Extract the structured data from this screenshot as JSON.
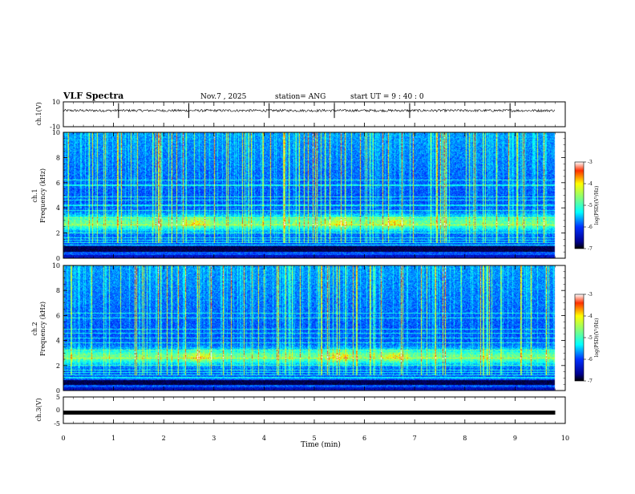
{
  "header": {
    "title": "VLF Spectra",
    "date": "Nov.7  , 2025",
    "station": "station= ANG",
    "start": "start  UT  =   9  : 40 : 0"
  },
  "colors": {
    "background": "#ffffff",
    "axis": "#000000"
  },
  "chart_data": [
    {
      "type": "line",
      "name": "ch1-waveform",
      "ylabel": "ch.1(V)",
      "ylim": [
        -10,
        10
      ],
      "yticks": [
        10,
        -10
      ],
      "x_range_min": [
        0,
        9.8
      ],
      "baseline_value": 3,
      "noise_amplitude": 1,
      "spikes_min": [
        1.1,
        2.5,
        4.1,
        5.4,
        6.9,
        8.9
      ]
    },
    {
      "type": "heatmap",
      "name": "ch1-spectrogram",
      "ylabel": "ch.1\nFrequency  (kHz)",
      "ylabel_line1": "ch.1",
      "ylabel_line2": "Frequency  (kHz)",
      "ylim": [
        0,
        10
      ],
      "yticks": [
        0,
        2,
        4,
        6,
        8,
        10
      ],
      "x_range_min": [
        0,
        9.8
      ],
      "band_center_khz": 2.8,
      "band_hotspots_min": [
        2.65,
        5.5,
        6.6
      ],
      "dark_band_khz": [
        0.5,
        0.9
      ],
      "colorbar": {
        "label": "log(PSD)(V²/Hz)",
        "range": [
          -7,
          -3
        ],
        "ticks": [
          -3,
          -4,
          -5,
          -6,
          -7
        ]
      }
    },
    {
      "type": "heatmap",
      "name": "ch2-spectrogram",
      "ylabel": "ch.2\nFrequency  (kHz)",
      "ylabel_line1": "ch.2",
      "ylabel_line2": "Frequency  (kHz)",
      "ylim": [
        0,
        10
      ],
      "yticks": [
        0,
        2,
        4,
        6,
        8,
        10
      ],
      "x_range_min": [
        0,
        9.8
      ],
      "band_center_khz": 2.7,
      "band_hotspots_min": [
        2.7,
        5.5,
        6.6
      ],
      "dark_band_khz": [
        0.4,
        0.8
      ],
      "colorbar": {
        "label": "log(PSD)(V²/Hz)",
        "range": [
          -7,
          -3
        ],
        "ticks": [
          -3,
          -4,
          -5,
          -6,
          -7
        ]
      }
    },
    {
      "type": "line",
      "name": "ch3-waveform",
      "ylabel": "ch.3(V)",
      "ylim": [
        -5,
        5
      ],
      "yticks": [
        5,
        0,
        -5
      ],
      "x_range_min": [
        0,
        9.8
      ],
      "baseline_value": 0
    }
  ],
  "xaxis": {
    "label": "Time  (min)",
    "ticks": [
      0,
      1,
      2,
      3,
      4,
      5,
      6,
      7,
      8,
      9,
      10
    ],
    "range": [
      0,
      10
    ]
  }
}
